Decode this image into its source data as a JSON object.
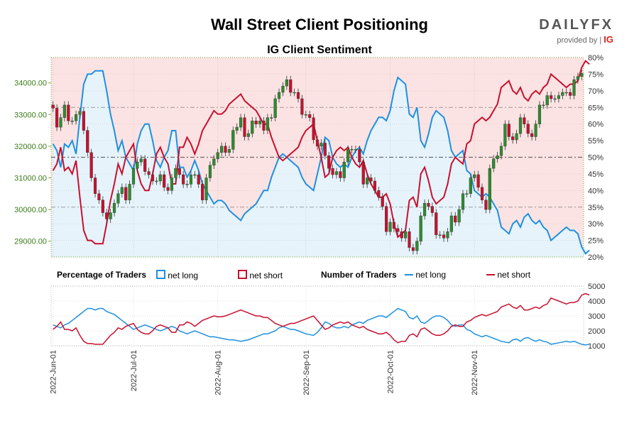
{
  "header": {
    "title": "Wall Street Client Positioning",
    "subtitle": "IG Client Sentiment",
    "brand": "DAILY",
    "brand_fx": "FX",
    "brand_sub": "provided by",
    "brand_ig": "IG"
  },
  "legend": {
    "pct_title": "Percentage of Traders",
    "pct_long": "net long",
    "pct_short": "net short",
    "num_title": "Number of Traders",
    "num_long": "net long",
    "num_short": "net short"
  },
  "colors": {
    "long": "#1e90e0",
    "short": "#c8102e",
    "candle_up": "#2e8b2e",
    "candle_down": "#c8102e",
    "bg_long": "#e6f3fb",
    "bg_short": "#fbe3e3"
  },
  "chart_data": [
    {
      "type": "candlestick",
      "title": "IG Client Sentiment",
      "y_left_ticks": [
        "29000.00",
        "30000.00",
        "31000.00",
        "32000.00",
        "33000.00",
        "34000.00"
      ],
      "y_left_range": [
        28500,
        34800
      ],
      "y_right_ticks": [
        "20%",
        "25%",
        "30%",
        "35%",
        "40%",
        "45%",
        "50%",
        "55%",
        "60%",
        "65%",
        "70%",
        "75%",
        "80%"
      ],
      "y_right_range": [
        20,
        80
      ],
      "x_ticks": [
        "2022-Jun-01",
        "2022-Jul-01",
        "2022-Aug-01",
        "2022-Sep-01",
        "2022-Oct-01",
        "2022-Nov-01"
      ],
      "close": [
        33200,
        32600,
        32900,
        33300,
        32800,
        32800,
        33000,
        33100,
        32500,
        31800,
        31000,
        30500,
        30300,
        29900,
        29700,
        29900,
        30200,
        30500,
        30700,
        30300,
        30800,
        31300,
        31500,
        31600,
        31200,
        31100,
        30900,
        30900,
        31100,
        30700,
        30600,
        31000,
        31300,
        31100,
        30800,
        30800,
        31100,
        31100,
        30800,
        30300,
        31000,
        31400,
        31600,
        31800,
        32000,
        31800,
        31900,
        32500,
        32600,
        32900,
        32300,
        32400,
        32800,
        32700,
        32800,
        32500,
        32900,
        32900,
        33500,
        33700,
        33900,
        34100,
        33700,
        33700,
        33500,
        33000,
        33000,
        32900,
        32200,
        32000,
        32100,
        31700,
        31300,
        31100,
        31200,
        31000,
        31500,
        31900,
        31900,
        31900,
        31500,
        30800,
        31000,
        30900,
        30600,
        30400,
        30100,
        29300,
        29600,
        29400,
        29300,
        29100,
        29300,
        28800,
        28700,
        29000,
        29800,
        30200,
        30100,
        29900,
        29200,
        29200,
        29100,
        29300,
        29800,
        29600,
        30000,
        30500,
        30500,
        31000,
        31100,
        30700,
        30300,
        30000,
        31300,
        31600,
        31700,
        32000,
        32700,
        32300,
        32200,
        32400,
        32900,
        32700,
        32400,
        32300,
        32700,
        33300,
        33300,
        33600,
        33500,
        33500,
        33600,
        33700,
        33700,
        33600,
        34100,
        34200,
        34300
      ],
      "net_long_pct": [
        54,
        52,
        47,
        54,
        53,
        55,
        51,
        62,
        72,
        75,
        75,
        76,
        76,
        76,
        70,
        63,
        58,
        52,
        55,
        50,
        48,
        46,
        54,
        58,
        60,
        60,
        55,
        49,
        47,
        50,
        52,
        58,
        58,
        47,
        47,
        44,
        46,
        49,
        46,
        42,
        40,
        38,
        36,
        37,
        37,
        36,
        34,
        33,
        32,
        31,
        33,
        34,
        35,
        36,
        38,
        40,
        40,
        44,
        47,
        50,
        51,
        50,
        49,
        48,
        47,
        44,
        42,
        41,
        40,
        45,
        50,
        56,
        55,
        50,
        48,
        47,
        48,
        47,
        50,
        52,
        53,
        51,
        55,
        58,
        60,
        62,
        62,
        61,
        64,
        70,
        74,
        73,
        72,
        63,
        62,
        65,
        55,
        53,
        57,
        62,
        64,
        63,
        62,
        58,
        52,
        50,
        51,
        52,
        46,
        45,
        40,
        39,
        38,
        39,
        38,
        36,
        34,
        29,
        28,
        27,
        30,
        31,
        29,
        32,
        33,
        31,
        30,
        31,
        29,
        28,
        25,
        26,
        27,
        28,
        29,
        28,
        28,
        27,
        23,
        21,
        22
      ],
      "net_short_pct": [
        46,
        48,
        53,
        46,
        47,
        45,
        49,
        38,
        28,
        25,
        25,
        24,
        24,
        24,
        30,
        37,
        42,
        48,
        45,
        50,
        52,
        54,
        46,
        42,
        40,
        40,
        45,
        51,
        53,
        50,
        48,
        42,
        42,
        53,
        53,
        56,
        54,
        51,
        54,
        58,
        60,
        62,
        64,
        63,
        63,
        64,
        66,
        67,
        68,
        69,
        67,
        66,
        65,
        64,
        62,
        60,
        60,
        56,
        53,
        50,
        49,
        50,
        51,
        52,
        53,
        56,
        58,
        59,
        60,
        55,
        50,
        44,
        45,
        50,
        52,
        53,
        52,
        53,
        50,
        48,
        47,
        49,
        45,
        42,
        40,
        38,
        38,
        39,
        36,
        30,
        26,
        27,
        28,
        37,
        38,
        35,
        45,
        47,
        43,
        38,
        36,
        37,
        38,
        42,
        48,
        50,
        49,
        48,
        54,
        55,
        60,
        61,
        62,
        61,
        62,
        64,
        66,
        71,
        72,
        73,
        70,
        69,
        71,
        68,
        67,
        69,
        70,
        69,
        71,
        72,
        75,
        74,
        73,
        72,
        71,
        72,
        72,
        73,
        77,
        79,
        78
      ]
    },
    {
      "type": "line",
      "title": "Number of Traders",
      "y_right_ticks": [
        "1000",
        "2000",
        "3000",
        "4000",
        "5000"
      ],
      "y_range": [
        1000,
        5000
      ],
      "series": [
        {
          "name": "net long",
          "values": [
            2400,
            2300,
            2200,
            2400,
            2500,
            2700,
            2900,
            3100,
            3300,
            3500,
            3500,
            3400,
            3500,
            3500,
            3300,
            3200,
            3100,
            2900,
            2700,
            2500,
            2300,
            2100,
            2200,
            2300,
            2400,
            2300,
            2200,
            2100,
            2000,
            2100,
            2200,
            2300,
            2200,
            2000,
            1900,
            1800,
            1900,
            2000,
            1900,
            1800,
            1700,
            1600,
            1600,
            1550,
            1500,
            1450,
            1400,
            1400,
            1350,
            1300,
            1350,
            1400,
            1500,
            1600,
            1700,
            1800,
            1800,
            1900,
            2000,
            2200,
            2300,
            2200,
            2100,
            2100,
            2000,
            1900,
            1800,
            1750,
            1700,
            1900,
            2200,
            2600,
            2500,
            2300,
            2200,
            2200,
            2300,
            2200,
            2400,
            2500,
            2600,
            2500,
            2700,
            2800,
            2900,
            3000,
            3000,
            2900,
            3100,
            3300,
            3500,
            3400,
            3300,
            2900,
            2800,
            3000,
            2600,
            2500,
            2700,
            2900,
            3000,
            3000,
            2900,
            2700,
            2400,
            2300,
            2400,
            2400,
            2100,
            2000,
            1800,
            1700,
            1600,
            1700,
            1600,
            1500,
            1400,
            1300,
            1250,
            1200,
            1400,
            1450,
            1300,
            1500,
            1550,
            1400,
            1300,
            1400,
            1300,
            1250,
            1100,
            1150,
            1200,
            1250,
            1300,
            1250,
            1300,
            1200,
            1100,
            1050,
            1100
          ]
        },
        {
          "name": "net short",
          "values": [
            2100,
            2300,
            2600,
            2100,
            2100,
            2000,
            2200,
            1700,
            1300,
            1150,
            1150,
            1100,
            1100,
            1100,
            1400,
            1700,
            1900,
            2200,
            2100,
            2300,
            2400,
            2500,
            2100,
            1900,
            1800,
            1800,
            2000,
            2300,
            2400,
            2300,
            2200,
            1900,
            1900,
            2400,
            2400,
            2600,
            2500,
            2300,
            2500,
            2700,
            2800,
            2900,
            3000,
            2950,
            2950,
            3000,
            3100,
            3200,
            3300,
            3400,
            3300,
            3200,
            3100,
            3000,
            3000,
            2900,
            2900,
            2700,
            2500,
            2400,
            2300,
            2400,
            2500,
            2500,
            2600,
            2700,
            2800,
            2900,
            3000,
            2700,
            2400,
            2100,
            2200,
            2400,
            2500,
            2600,
            2500,
            2600,
            2400,
            2300,
            2200,
            2300,
            2100,
            2000,
            1900,
            1800,
            1800,
            1900,
            1700,
            1400,
            1200,
            1300,
            1300,
            1700,
            1800,
            1600,
            2100,
            2200,
            2000,
            1800,
            1700,
            1700,
            1800,
            2000,
            2300,
            2400,
            2300,
            2300,
            2600,
            2700,
            2900,
            3000,
            3100,
            3000,
            3100,
            3200,
            3300,
            3600,
            3700,
            3800,
            3600,
            3500,
            3700,
            3400,
            3400,
            3500,
            3600,
            3500,
            3700,
            3800,
            4200,
            4100,
            4000,
            3900,
            3800,
            3900,
            3900,
            4000,
            4400,
            4500,
            4400
          ]
        }
      ]
    }
  ]
}
